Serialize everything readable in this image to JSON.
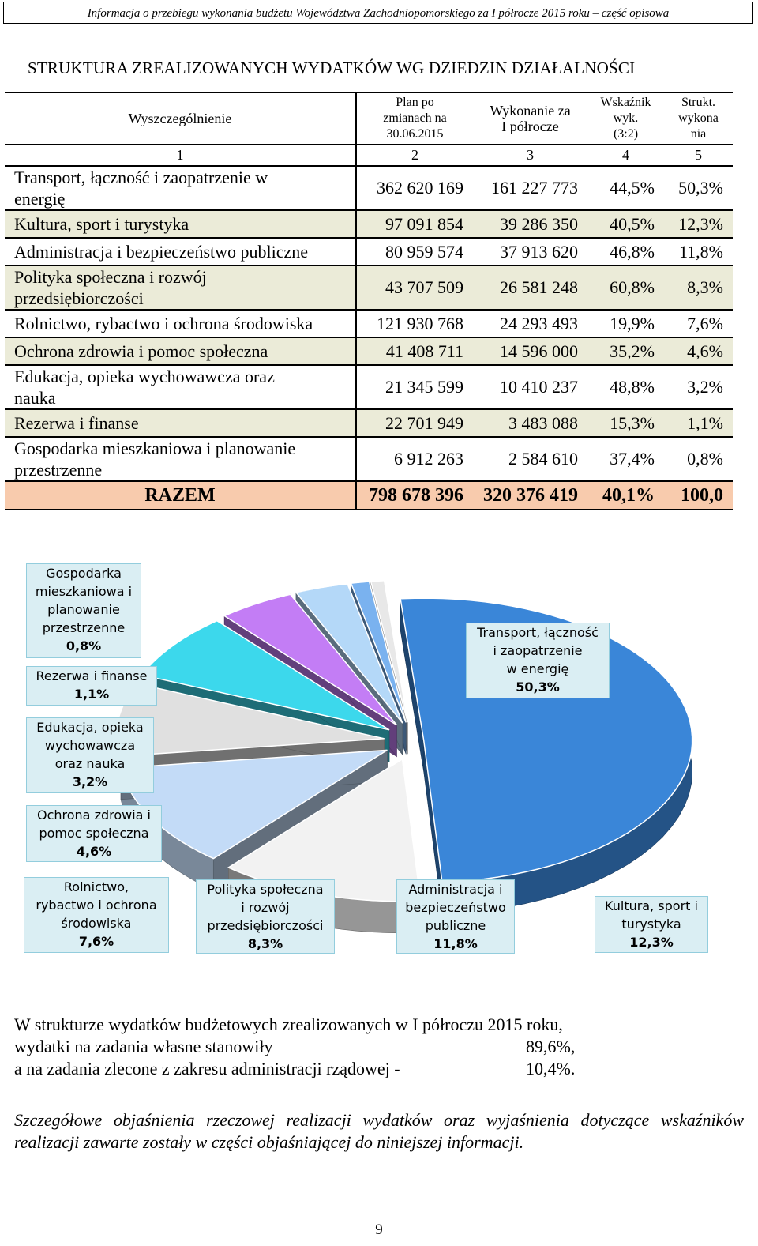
{
  "header": "Informacja o przebiegu wykonania budżetu Województwa Zachodniopomorskiego za I półrocze 2015 roku – część opisowa",
  "section_title": "STRUKTURA ZREALIZOWANYCH WYDATKÓW WG DZIEDZIN DZIAŁALNOŚCI",
  "table": {
    "headers": {
      "name": "Wyszczególnienie",
      "plan": [
        "Plan po",
        "zmianach na",
        "30.06.2015"
      ],
      "exec": [
        "Wykonanie za",
        "I półrocze"
      ],
      "ratio": [
        "Wskaźnik",
        "wyk.",
        "(3:2)"
      ],
      "struct": [
        "Strukt.",
        "wykona",
        "nia"
      ]
    },
    "col_numbers": [
      "1",
      "2",
      "3",
      "4",
      "5"
    ],
    "rows": [
      {
        "name": [
          "Transport, łączność i zaopatrzenie w",
          "energię"
        ],
        "plan": "362 620 169",
        "exec": "161 227 773",
        "ratio": "44,5%",
        "struct": "50,3%"
      },
      {
        "name": [
          "Kultura, sport i turystyka"
        ],
        "plan": "97 091 854",
        "exec": "39 286 350",
        "ratio": "40,5%",
        "struct": "12,3%"
      },
      {
        "name": [
          "Administracja i bezpieczeństwo publiczne"
        ],
        "plan": "80 959 574",
        "exec": "37 913 620",
        "ratio": "46,8%",
        "struct": "11,8%"
      },
      {
        "name": [
          "Polityka społeczna i rozwój",
          "przedsiębiorczości"
        ],
        "plan": "43 707 509",
        "exec": "26 581 248",
        "ratio": "60,8%",
        "struct": "8,3%"
      },
      {
        "name": [
          "Rolnictwo, rybactwo i ochrona środowiska"
        ],
        "plan": "121 930 768",
        "exec": "24 293 493",
        "ratio": "19,9%",
        "struct": "7,6%"
      },
      {
        "name": [
          "Ochrona zdrowia i pomoc społeczna"
        ],
        "plan": "41 408 711",
        "exec": "14 596 000",
        "ratio": "35,2%",
        "struct": "4,6%"
      },
      {
        "name": [
          "Edukacja, opieka wychowawcza oraz",
          "nauka"
        ],
        "plan": "21 345 599",
        "exec": "10 410 237",
        "ratio": "48,8%",
        "struct": "3,2%"
      },
      {
        "name": [
          "Rezerwa i finanse"
        ],
        "plan": "22 701 949",
        "exec": "3 483 088",
        "ratio": "15,3%",
        "struct": "1,1%"
      },
      {
        "name": [
          "Gospodarka mieszkaniowa i planowanie",
          "przestrzenne"
        ],
        "plan": "6 912 263",
        "exec": "2 584 610",
        "ratio": "37,4%",
        "struct": "0,8%"
      }
    ],
    "total": {
      "name": "RAZEM",
      "plan": "798 678 396",
      "exec": "320 376 419",
      "ratio": "40,1%",
      "struct": "100,0"
    }
  },
  "chart_data": {
    "type": "pie",
    "title": "",
    "slices": [
      {
        "label": "Transport, łączność i zaopatrzenie w energię",
        "value": 50.3,
        "value_label": "50,3%",
        "color": "#3a86d8"
      },
      {
        "label": "Kultura, sport i turystyka",
        "value": 12.3,
        "value_label": "12,3%",
        "color": "#f2f2f2"
      },
      {
        "label": "Administracja i bezpieczeństwo publiczne",
        "value": 11.8,
        "value_label": "11,8%",
        "color": "#c3dbf7"
      },
      {
        "label": "Polityka społeczna i rozwój przedsiębiorczości",
        "value": 8.3,
        "value_label": "8,3%",
        "color": "#e0e0e0"
      },
      {
        "label": "Rolnictwo, rybactwo i ochrona środowiska",
        "value": 7.6,
        "value_label": "7,6%",
        "color": "#3cd8ec"
      },
      {
        "label": "Ochrona zdrowia i pomoc społeczna",
        "value": 4.6,
        "value_label": "4,6%",
        "color": "#c37df5"
      },
      {
        "label": "Edukacja, opieka wychowawcza oraz nauka",
        "value": 3.2,
        "value_label": "3,2%",
        "color": "#b4d8f8"
      },
      {
        "label": "Rezerwa i finanse",
        "value": 1.1,
        "value_label": "1,1%",
        "color": "#7ab2ef"
      },
      {
        "label": "Gospodarka mieszkaniowa i planowanie przestrzenne",
        "value": 0.8,
        "value_label": "0,8%",
        "color": "#e8e8e8"
      }
    ],
    "labels": {
      "gosp": [
        "Gospodarka",
        "mieszkaniowa i",
        "planowanie",
        "przestrzenne",
        "0,8%"
      ],
      "rez": [
        "Rezerwa i finanse",
        "1,1%"
      ],
      "edu": [
        "Edukacja, opieka",
        "wychowawcza",
        "oraz nauka",
        "3,2%"
      ],
      "zdr": [
        "Ochrona zdrowia i",
        "pomoc społeczna",
        "4,6%"
      ],
      "rol": [
        "Rolnictwo,",
        "rybactwo i ochrona",
        "środowiska",
        "7,6%"
      ],
      "pol": [
        "Polityka społeczna",
        "i rozwój",
        "przedsiębiorczości",
        "8,3%"
      ],
      "adm": [
        "Administracja i",
        "bezpieczeństwo",
        "publiczne",
        "11,8%"
      ],
      "kul": [
        "Kultura, sport i",
        "turystyka",
        "12,3%"
      ],
      "tra": [
        "Transport, łączność",
        "i zaopatrzenie",
        "w energię",
        "50,3%"
      ]
    }
  },
  "paragraph": {
    "line1": "W strukturze wydatków budżetowych zrealizowanych w I półroczu 2015 roku,",
    "line2": "wydatki na zadania własne stanowiły",
    "line2_val": "89,6%,",
    "line3": "a na zadania zlecone z zakresu administracji rządowej -",
    "line3_val": "10,4%."
  },
  "italic_note": "Szczegółowe objaśnienia rzeczowej realizacji wydatków oraz wyjaśnienia dotyczące wskaźników realizacji zawarte zostały w części objaśniającej do niniejszej informacji.",
  "page_number": "9"
}
